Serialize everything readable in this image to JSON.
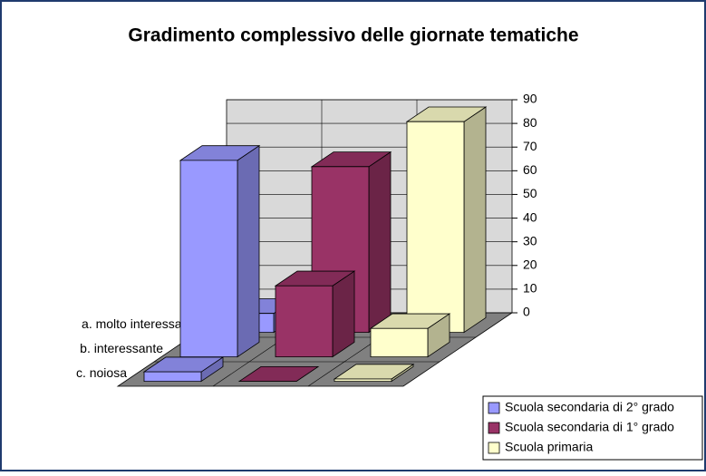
{
  "chart_data": {
    "type": "bar3d",
    "title": "Gradimento complessivo delle giornate tematiche",
    "categories": [
      "a. molto interessante",
      "b. interessante",
      "c. noiosa"
    ],
    "series": [
      {
        "name": "Scuola secondaria di 2° grado",
        "color": "#9999ff",
        "values": [
          8,
          83,
          4
        ]
      },
      {
        "name": "Scuola secondaria di 1° grado",
        "color": "#993366",
        "values": [
          70,
          30,
          0
        ]
      },
      {
        "name": "Scuola primaria",
        "color": "#ffffcc",
        "values": [
          89,
          12,
          1
        ]
      }
    ],
    "ylim": [
      0,
      90
    ],
    "yticks": [
      0,
      10,
      20,
      30,
      40,
      50,
      60,
      70,
      80,
      90
    ],
    "grid": true,
    "legend": "bottom-right"
  }
}
